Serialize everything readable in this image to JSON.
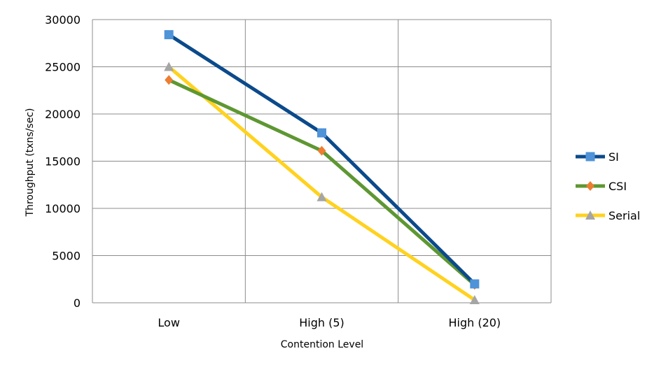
{
  "chart_data": {
    "type": "line",
    "categories": [
      "Low",
      "High (5)",
      "High (20)"
    ],
    "xlabel": "Contention Level",
    "ylabel": "Throughput (txns/sec)",
    "ylim": [
      0,
      30000
    ],
    "yticks": [
      0,
      5000,
      10000,
      15000,
      20000,
      25000,
      30000
    ],
    "grid": true,
    "legend_position": "right",
    "series": [
      {
        "name": "SI",
        "values": [
          28400,
          18000,
          2000
        ],
        "color": "#0B4A8B",
        "marker_color": "#4F93D8",
        "marker": "square"
      },
      {
        "name": "CSI",
        "values": [
          23600,
          16100,
          1900
        ],
        "color": "#5E9732",
        "marker_color": "#ED7D31",
        "marker": "diamond"
      },
      {
        "name": "Serial",
        "values": [
          25000,
          11200,
          300
        ],
        "color": "#FFD21F",
        "marker_color": "#A5A5A5",
        "marker": "triangle"
      }
    ]
  }
}
